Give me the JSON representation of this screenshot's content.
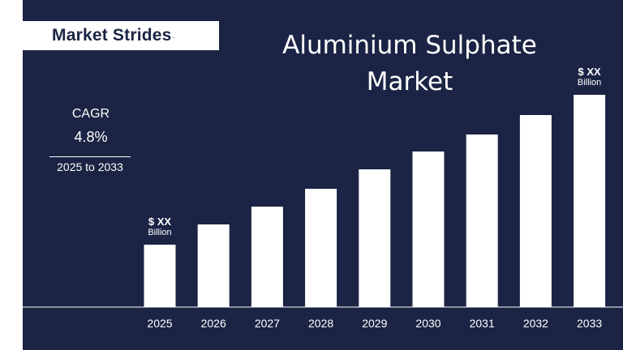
{
  "brand": {
    "logo_text": "Market Strides",
    "logo_mark": "."
  },
  "title": {
    "line1": "Aluminium Sulphate",
    "line2": "Market"
  },
  "cagr": {
    "label": "CAGR",
    "value": "4.8%",
    "period": "2025 to 2033"
  },
  "colors": {
    "background": "#1b2444",
    "bars": "#ffffff",
    "text": "#ffffff"
  },
  "chart_data": {
    "type": "bar",
    "categories": [
      "2025",
      "2026",
      "2027",
      "2028",
      "2029",
      "2030",
      "2031",
      "2032",
      "2033"
    ],
    "values": [
      77,
      102,
      124,
      146,
      170,
      192,
      213,
      237,
      262
    ],
    "y_axis_visible": false,
    "grid": false,
    "annotations": [
      {
        "category": "2025",
        "value_label": "$ XX",
        "unit_label": "Billion"
      },
      {
        "category": "2033",
        "value_label": "$ XX",
        "unit_label": "Billion"
      }
    ]
  }
}
